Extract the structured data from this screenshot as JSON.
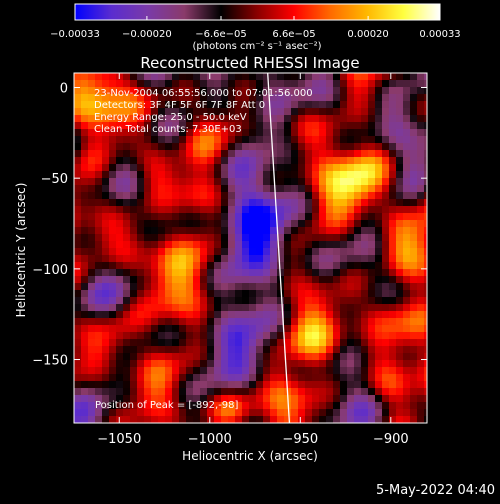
{
  "chart_data": {
    "type": "heatmap",
    "title": "Reconstructed RHESSI Image",
    "xlabel": "Heliocentric X (arcsec)",
    "ylabel": "Heliocentric Y (arcsec)",
    "xlim": [
      -1075,
      -880
    ],
    "ylim": [
      -185,
      8
    ],
    "x_ticks": [
      -1050,
      -1000,
      -950,
      -900
    ],
    "x_tick_labels": [
      "−1050",
      "−1000",
      "−950",
      "−900"
    ],
    "y_ticks": [
      0,
      -50,
      -100,
      -150
    ],
    "y_tick_labels": [
      "0",
      "−50",
      "−100",
      "−150"
    ],
    "colorbar": {
      "range": [
        -0.00033,
        0.00033
      ],
      "ticks": [
        -0.00033,
        -0.0002,
        -6.6e-05,
        6.6e-05,
        0.0002,
        0.00033
      ],
      "tick_labels": [
        "−0.00033",
        "−0.00020",
        "−6.6e−05",
        "6.6e−05",
        "0.00020",
        "0.00033"
      ],
      "unit_label": "(photons cm⁻² s⁻¹ asec⁻²)",
      "colors": [
        "#0000ff",
        "#5a2ccf",
        "#7a3aa8",
        "#8a3a6a",
        "#000000",
        "#8b0000",
        "#ff0000",
        "#ff6a00",
        "#ffb800",
        "#ffff40",
        "#ffffff"
      ]
    },
    "annotations": [
      "23-Nov-2004 06:55:56.000 to 07:01:56.000",
      "Detectors: 3F 4F 5F 6F 7F 8F  Att 0",
      "Energy Range: 25.0 - 50.0 keV",
      "Clean     Total counts: 7.30E+03"
    ],
    "peak_label": "Position of Peak = [-892,-98]",
    "limb_line": {
      "x": [
        -968,
        -956
      ],
      "y": [
        8,
        -185
      ]
    },
    "grid": false
  },
  "footer": {
    "date": "5-May-2022 04:40"
  }
}
